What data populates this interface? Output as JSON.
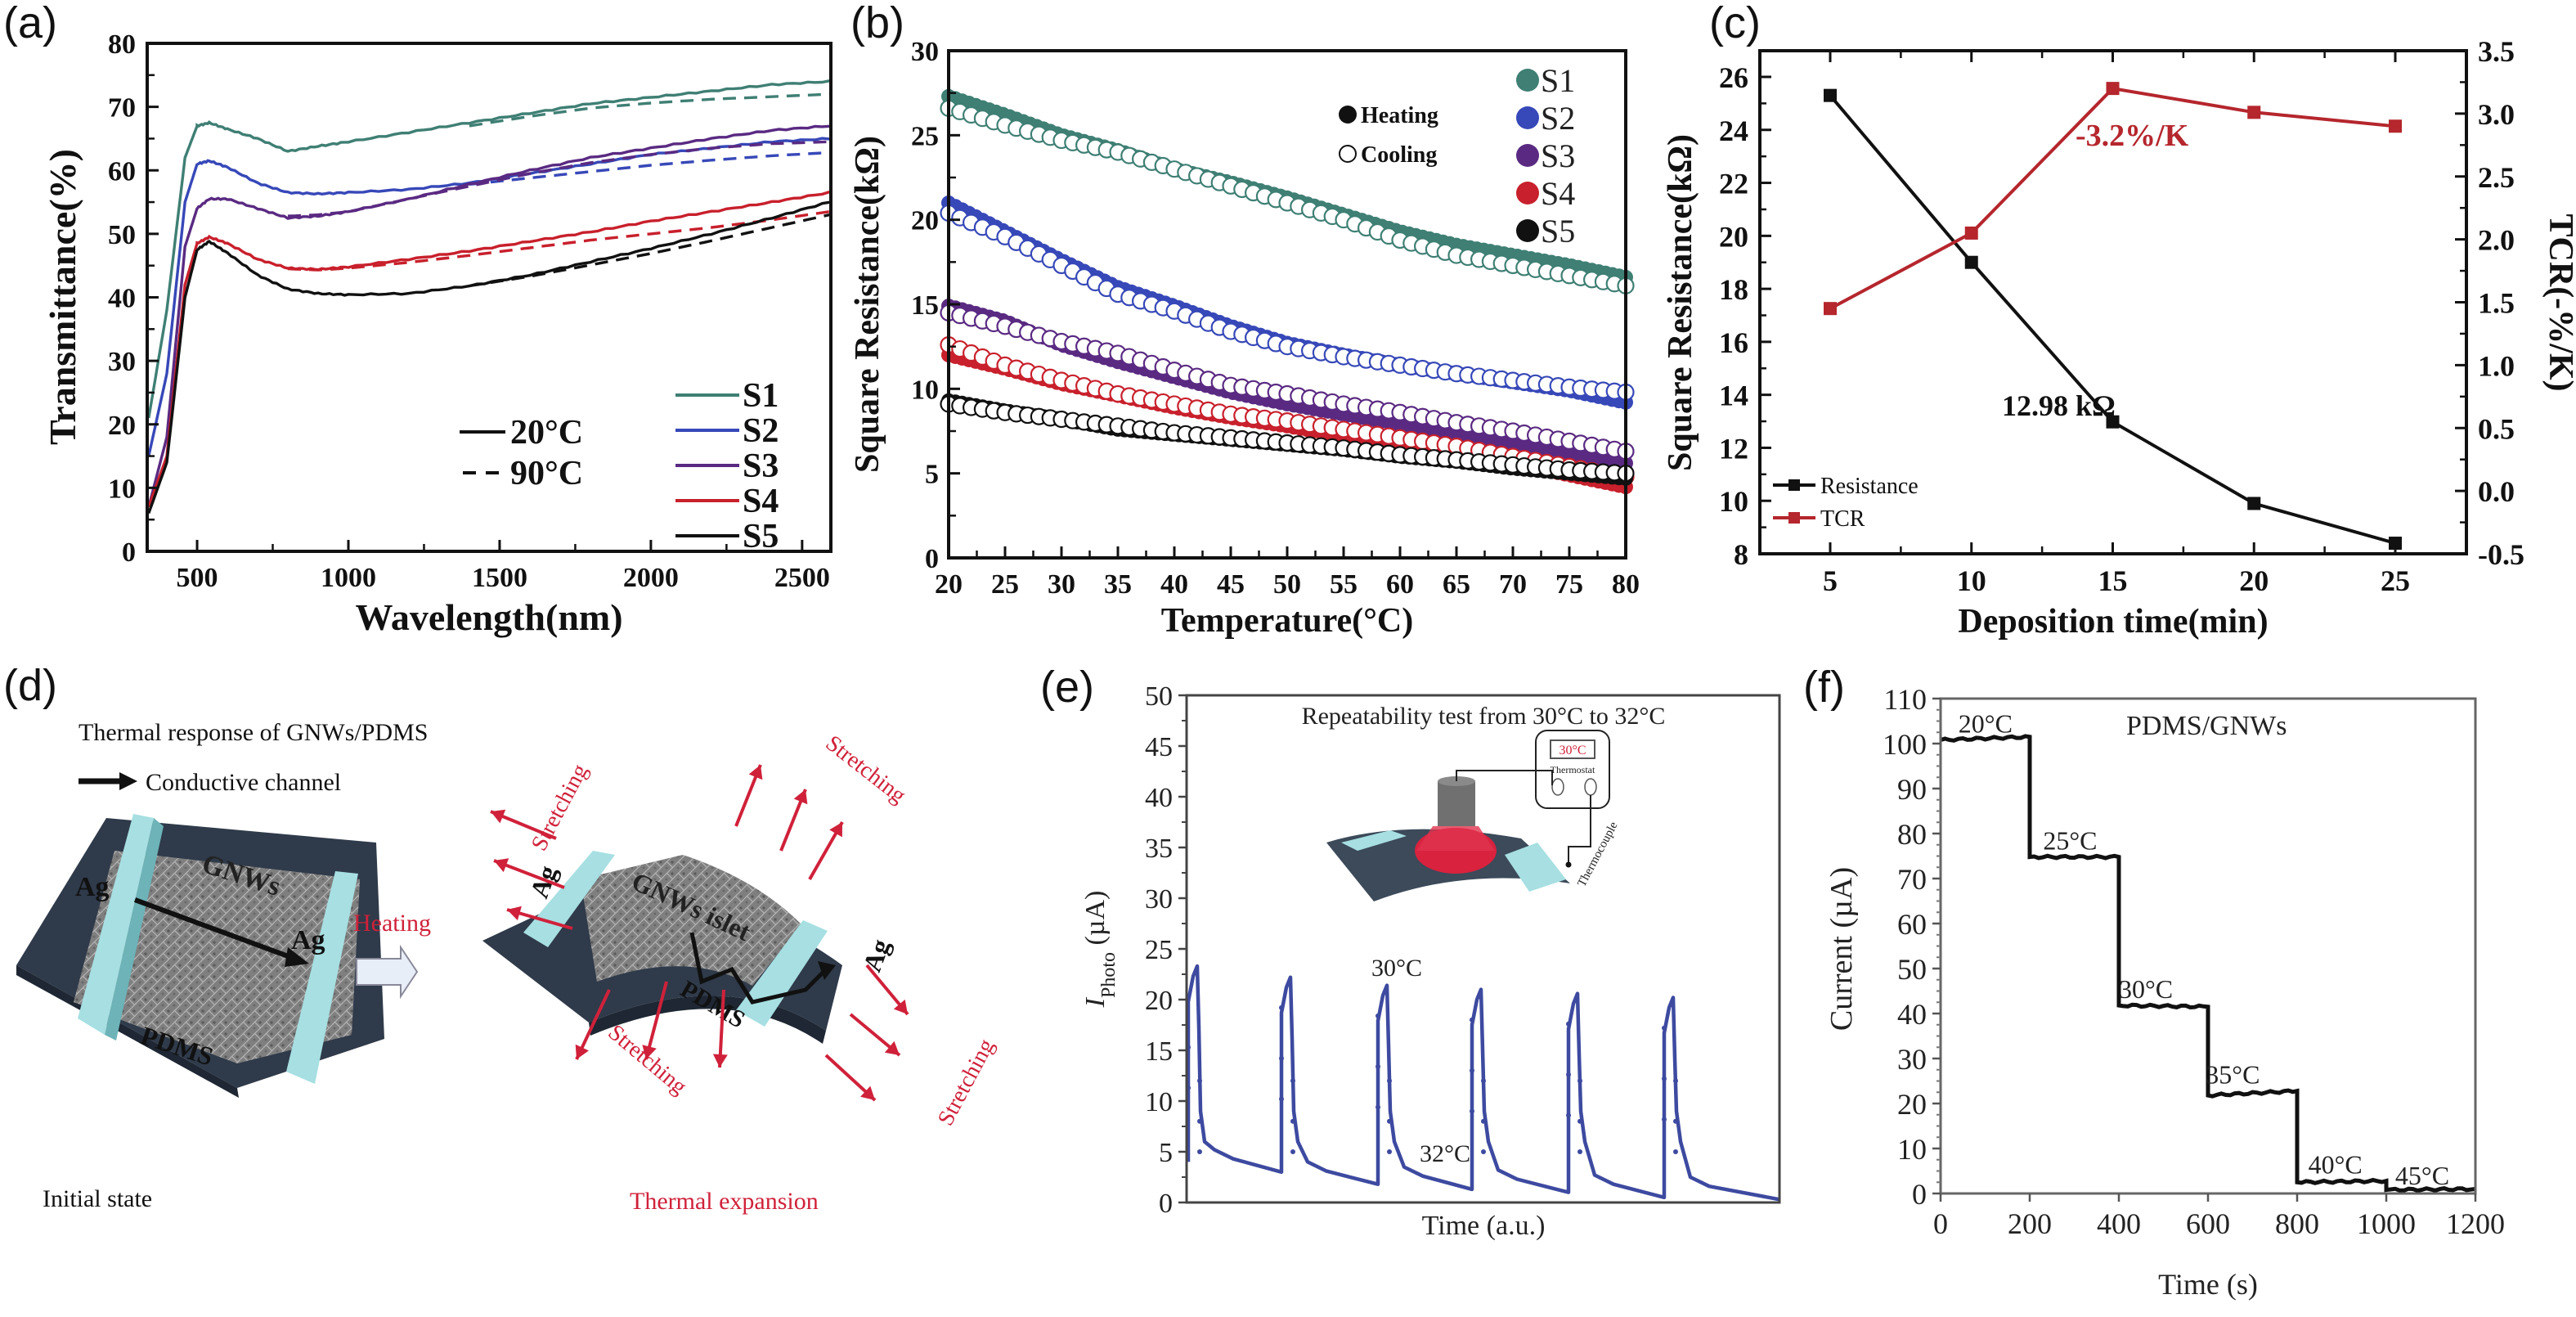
{
  "figure": {
    "panels": [
      "(a)",
      "(b)",
      "(c)",
      "(d)",
      "(e)",
      "(f)"
    ]
  },
  "colors": {
    "S1": "#3f7f74",
    "S2": "#3748b8",
    "S3": "#5a2a82",
    "S4": "#c8202c",
    "S5": "#111111",
    "tcr": "#b5262d",
    "accent_red": "#d0213a",
    "photo_blue": "#3d4aa0",
    "ag_cyan": "#9ad8dc",
    "pdms": "#3b4656"
  },
  "chart_data": [
    {
      "id": "a",
      "type": "line",
      "title": "",
      "xlabel": "Wavelength(nm)",
      "ylabel": "Transmittance(%)",
      "xlim": [
        335,
        2595
      ],
      "ylim": [
        0,
        80
      ],
      "xticks": [
        500,
        1000,
        1500,
        2000,
        2500
      ],
      "yticks": [
        0,
        10,
        20,
        30,
        40,
        50,
        60,
        70,
        80
      ],
      "legend_samples": [
        "S1",
        "S2",
        "S3",
        "S4",
        "S5"
      ],
      "legend_styles": [
        {
          "label": "20°C",
          "style": "solid"
        },
        {
          "label": "90°C",
          "style": "dashed"
        }
      ],
      "legend_placement": "bottom-right",
      "x": [
        340,
        400,
        460,
        500,
        540,
        600,
        700,
        800,
        900,
        1000,
        1200,
        1400,
        1600,
        1800,
        2000,
        2200,
        2400,
        2590
      ],
      "series": [
        {
          "name": "S1 20°C",
          "sample": "S1",
          "style": "solid",
          "values": [
            21,
            38,
            62,
            67,
            67.5,
            66.5,
            65,
            63,
            63.8,
            64.5,
            66,
            67.5,
            69,
            70.5,
            71.5,
            72.5,
            73.5,
            74
          ]
        },
        {
          "name": "S1 90°C",
          "sample": "S1",
          "style": "dashed",
          "values": [
            null,
            null,
            null,
            null,
            null,
            null,
            null,
            null,
            null,
            null,
            null,
            67,
            68.5,
            69.8,
            70.6,
            71.2,
            71.6,
            72
          ]
        },
        {
          "name": "S2 20°C",
          "sample": "S2",
          "style": "solid",
          "values": [
            15,
            28,
            55,
            61,
            61.5,
            60.5,
            58,
            56.5,
            56.3,
            56.5,
            57,
            58,
            59.5,
            61,
            62.5,
            63.5,
            64.5,
            65
          ]
        },
        {
          "name": "S2 90°C",
          "sample": "S2",
          "style": "dashed",
          "values": [
            null,
            null,
            null,
            null,
            null,
            null,
            null,
            null,
            null,
            null,
            null,
            57.8,
            58.8,
            59.8,
            60.8,
            61.6,
            62.3,
            62.8
          ]
        },
        {
          "name": "S3 20°C",
          "sample": "S3",
          "style": "solid",
          "values": [
            7,
            18,
            48,
            54,
            55.5,
            55.5,
            54,
            52.5,
            52.8,
            53.5,
            55.5,
            57.8,
            60,
            62,
            63.5,
            65,
            66.3,
            67
          ]
        },
        {
          "name": "S3 90°C",
          "sample": "S3",
          "style": "dashed",
          "values": [
            null,
            null,
            null,
            null,
            null,
            null,
            null,
            52.8,
            53,
            53.5,
            55.5,
            57.5,
            59.5,
            61.2,
            62.5,
            63.5,
            64.2,
            64.5
          ]
        },
        {
          "name": "S4 20°C",
          "sample": "S4",
          "style": "solid",
          "values": [
            7,
            15,
            42,
            48.5,
            49.5,
            48.5,
            46,
            44.6,
            44.4,
            44.8,
            46,
            47.3,
            48.8,
            50.3,
            52,
            53.5,
            55,
            56.5
          ]
        },
        {
          "name": "S4 90°C",
          "sample": "S4",
          "style": "dashed",
          "values": [
            null,
            null,
            null,
            null,
            null,
            null,
            null,
            44.5,
            44.3,
            44.6,
            45.5,
            46.6,
            47.8,
            49,
            50,
            51,
            52.2,
            53.5
          ]
        },
        {
          "name": "S5 20°C",
          "sample": "S5",
          "style": "solid",
          "values": [
            6,
            14,
            40,
            47.5,
            48.8,
            47,
            43.5,
            41.3,
            40.6,
            40.4,
            40.6,
            41.8,
            43.5,
            45.6,
            47.7,
            50,
            52.5,
            55
          ]
        },
        {
          "name": "S5 90°C",
          "sample": "S5",
          "style": "dashed",
          "values": [
            null,
            null,
            null,
            null,
            null,
            null,
            null,
            null,
            null,
            null,
            null,
            41.8,
            43.3,
            45.1,
            46.9,
            48.9,
            51,
            53
          ]
        }
      ]
    },
    {
      "id": "b",
      "type": "scatter",
      "title": "",
      "xlabel": "Temperature(°C)",
      "ylabel": "Square Resistance(kΩ)",
      "xlim": [
        20,
        80
      ],
      "ylim": [
        0,
        30
      ],
      "xticks": [
        20,
        25,
        30,
        35,
        40,
        45,
        50,
        55,
        60,
        65,
        70,
        75,
        80
      ],
      "yticks": [
        0,
        5,
        10,
        15,
        20,
        25,
        30
      ],
      "legend_markers": [
        {
          "label": "Heating",
          "fill": "filled"
        },
        {
          "label": "Cooling",
          "fill": "open"
        }
      ],
      "legend_samples": [
        "S1",
        "S2",
        "S3",
        "S4",
        "S5"
      ],
      "legend_placement": "top-right",
      "x": [
        20,
        25,
        30,
        35,
        40,
        45,
        50,
        55,
        60,
        65,
        70,
        75,
        80
      ],
      "series": [
        {
          "name": "S1 Heating",
          "sample": "S1",
          "marker": "filled",
          "values": [
            27.3,
            26.2,
            25.0,
            24.1,
            23.0,
            22.2,
            21.3,
            20.3,
            19.3,
            18.5,
            17.9,
            17.3,
            16.6
          ]
        },
        {
          "name": "S1 Cooling",
          "sample": "S1",
          "marker": "open",
          "values": [
            26.6,
            25.6,
            24.7,
            24.0,
            23.0,
            22.0,
            21.0,
            20.0,
            18.8,
            17.9,
            17.3,
            16.7,
            16.1
          ]
        },
        {
          "name": "S2 Heating",
          "sample": "S2",
          "marker": "filled",
          "values": [
            21.0,
            19.3,
            17.6,
            16.0,
            14.9,
            13.7,
            12.7,
            12.0,
            11.4,
            10.9,
            10.4,
            9.9,
            9.2
          ]
        },
        {
          "name": "S2 Cooling",
          "sample": "S2",
          "marker": "open",
          "values": [
            20.4,
            19.0,
            17.3,
            15.6,
            14.6,
            13.4,
            12.5,
            11.9,
            11.4,
            10.9,
            10.5,
            10.1,
            9.8
          ]
        },
        {
          "name": "S3 Heating",
          "sample": "S3",
          "marker": "filled",
          "values": [
            14.9,
            14.0,
            12.6,
            11.6,
            10.7,
            9.8,
            9.1,
            8.5,
            7.9,
            7.3,
            6.8,
            6.2,
            5.6
          ]
        },
        {
          "name": "S3 Cooling",
          "sample": "S3",
          "marker": "open",
          "values": [
            14.5,
            13.7,
            12.8,
            12.1,
            11.1,
            10.2,
            9.7,
            9.1,
            8.6,
            8.0,
            7.5,
            6.9,
            6.3
          ]
        },
        {
          "name": "S4 Heating",
          "sample": "S4",
          "marker": "filled",
          "values": [
            12.0,
            11.2,
            10.3,
            9.6,
            8.9,
            8.3,
            7.8,
            7.2,
            6.7,
            6.1,
            5.6,
            4.9,
            4.2
          ]
        },
        {
          "name": "S4 Cooling",
          "sample": "S4",
          "marker": "open",
          "values": [
            12.6,
            11.4,
            10.5,
            9.7,
            9.1,
            8.5,
            8.1,
            7.6,
            7.1,
            6.6,
            6.0,
            5.4,
            4.8
          ]
        },
        {
          "name": "S5 Heating",
          "sample": "S5",
          "marker": "filled",
          "values": [
            9.3,
            8.7,
            8.2,
            7.6,
            7.3,
            7.0,
            6.7,
            6.4,
            6.0,
            5.7,
            5.3,
            5.0,
            4.7
          ]
        },
        {
          "name": "S5 Cooling",
          "sample": "S5",
          "marker": "open",
          "values": [
            9.1,
            8.6,
            8.2,
            7.8,
            7.4,
            7.1,
            6.8,
            6.5,
            6.1,
            5.8,
            5.5,
            5.2,
            5.0
          ]
        }
      ]
    },
    {
      "id": "c",
      "type": "line",
      "title": "",
      "xlabel": "Deposition time(min)",
      "ylabel": "Square Resistance(kΩ)",
      "ylabel_right": "TCR(-%/K)",
      "xlim": [
        1.4,
        27.4
      ],
      "ylim": [
        8,
        27
      ],
      "ylim_right": [
        -0.5,
        3.5
      ],
      "xticks": [
        5,
        10,
        15,
        20,
        25
      ],
      "yticks": [
        8,
        10,
        12,
        14,
        16,
        18,
        20,
        22,
        24,
        26
      ],
      "yticks_right": [
        "-0.5",
        "0.0",
        "0.5",
        "1.0",
        "1.5",
        "2.0",
        "2.5",
        "3.0",
        "3.5"
      ],
      "legend_placement": "bottom-left",
      "x": [
        5,
        10,
        15,
        20,
        25
      ],
      "series": [
        {
          "name": "Resistance",
          "axis": "left",
          "values": [
            25.3,
            19.0,
            12.98,
            9.9,
            8.4
          ]
        },
        {
          "name": "TCR",
          "axis": "right",
          "values": [
            1.45,
            2.05,
            3.2,
            3.01,
            2.9
          ]
        }
      ],
      "annotations": [
        {
          "text": "-3.2%/K",
          "color": "tcr"
        },
        {
          "text": "12.98 kΩ",
          "color": "S5"
        }
      ]
    },
    {
      "id": "e",
      "type": "line",
      "title": "Repeatability test from 30°C to 32°C",
      "xlabel": "Time (a.u.)",
      "ylabel": "I_Photo (µA)",
      "ylabel_main": "I",
      "ylabel_sub": "Photo",
      "ylabel_unit": " (µA)",
      "ylim": [
        0,
        50
      ],
      "yticks": [
        0,
        5,
        10,
        15,
        20,
        25,
        30,
        35,
        40,
        45,
        50
      ],
      "cycles": [
        {
          "rise_from": 4.0,
          "peak": 23.3,
          "decay_to": 3.0
        },
        {
          "rise_from": 3.0,
          "peak": 22.2,
          "decay_to": 1.8
        },
        {
          "rise_from": 1.8,
          "peak": 21.4,
          "decay_to": 1.3
        },
        {
          "rise_from": 1.3,
          "peak": 21.0,
          "decay_to": 1.0
        },
        {
          "rise_from": 1.0,
          "peak": 20.6,
          "decay_to": 0.5
        },
        {
          "rise_from": 0.5,
          "peak": 20.2,
          "decay_to": 0.3
        }
      ],
      "annotations": [
        {
          "text": "30°C",
          "color": "accent_red"
        },
        {
          "text": "32°C",
          "color": "accent_red"
        }
      ],
      "inset": {
        "display": "30°C",
        "thermostat": "Thermostat",
        "thermocouple": "Thermocouple"
      }
    },
    {
      "id": "f",
      "type": "line",
      "title": "PDMS/GNWs",
      "xlabel": "Time (s)",
      "ylabel": "Current (µA)",
      "xlim": [
        0,
        1200
      ],
      "ylim": [
        0,
        110
      ],
      "xticks": [
        0,
        200,
        400,
        600,
        800,
        1000,
        1200
      ],
      "yticks": [
        0,
        10,
        20,
        30,
        40,
        50,
        60,
        70,
        80,
        90,
        100,
        110
      ],
      "steps": [
        {
          "t0": 0,
          "t1": 200,
          "start": 100.8,
          "end": 101.5,
          "label": "20°C"
        },
        {
          "t0": 200,
          "t1": 400,
          "start": 74.8,
          "end": 74.8,
          "label": "25°C"
        },
        {
          "t0": 400,
          "t1": 600,
          "start": 41.8,
          "end": 41.5,
          "label": "30°C"
        },
        {
          "t0": 600,
          "t1": 800,
          "start": 21.8,
          "end": 22.8,
          "label": "35°C"
        },
        {
          "t0": 800,
          "t1": 1000,
          "start": 2.5,
          "end": 2.8,
          "label": "40°C"
        },
        {
          "t0": 1000,
          "t1": 1200,
          "start": 0.8,
          "end": 1.0,
          "label": "45°C"
        }
      ]
    }
  ],
  "diagram_d": {
    "title": "Thermal response of GNWs/PDMS",
    "legend_arrow_label": "Conductive channel",
    "initial": {
      "electrode_left": "Ag",
      "electrode_right": "Ag",
      "film": "GNWs",
      "substrate": "PDMS",
      "caption": "Initial state"
    },
    "transition": "Heating",
    "expanded": {
      "electrode_left": "Ag",
      "electrode_right": "Ag",
      "film": "GNWs islet",
      "substrate": "PDMS",
      "caption": "Thermal expansion",
      "stretch_label": "Stretching"
    }
  }
}
